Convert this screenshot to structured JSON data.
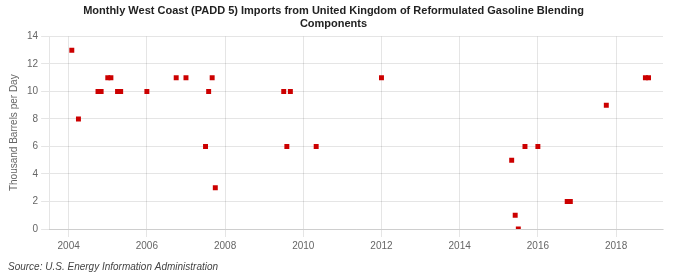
{
  "chart_data": {
    "type": "scatter",
    "title": "Monthly West Coast (PADD 5) Imports from United Kingdom of Reformulated Gasoline Blending\nComponents",
    "y_label": "Thousand Barrels per Day",
    "annotations": [
      "Source: U.S. Energy Information Administration"
    ],
    "xlim": [
      2003.5,
      2019.2
    ],
    "ylim": [
      0,
      14
    ],
    "xticks": [
      2004,
      2006,
      2008,
      2010,
      2012,
      2014,
      2016,
      2018
    ],
    "yticks": [
      0,
      2,
      4,
      6,
      8,
      10,
      12,
      14
    ],
    "grid": true,
    "color": "#cc0000",
    "marker": "square",
    "x": [
      2004.08,
      2004.25,
      2004.75,
      2004.83,
      2005.0,
      2005.08,
      2005.25,
      2005.33,
      2006.0,
      2006.75,
      2007.0,
      2007.5,
      2007.58,
      2007.67,
      2007.75,
      2009.5,
      2009.58,
      2009.67,
      2010.33,
      2012.0,
      2015.33,
      2015.42,
      2015.5,
      2015.67,
      2016.0,
      2016.75,
      2016.83,
      2017.75,
      2018.75,
      2018.83
    ],
    "values": [
      13,
      8,
      10,
      10,
      11,
      11,
      10,
      10,
      10,
      11,
      11,
      6,
      10,
      11,
      3,
      10,
      6,
      10,
      6,
      11,
      5,
      1,
      0,
      6,
      6,
      2,
      2,
      9,
      11,
      11
    ]
  }
}
